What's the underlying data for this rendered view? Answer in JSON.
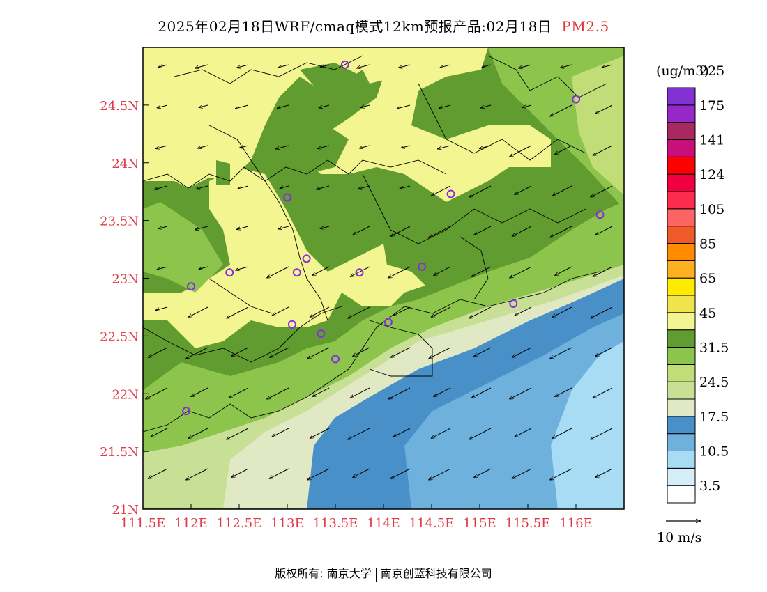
{
  "title": {
    "main": "2025年02月18日WRF/cmaq模式12km预报产品:02月18日",
    "pollutant": "PM2.5"
  },
  "map": {
    "lon_range": [
      111.5,
      116.5
    ],
    "lat_range": [
      21.0,
      25.0
    ],
    "x_ticks": [
      "111.5E",
      "112E",
      "112.5E",
      "113E",
      "113.5E",
      "114E",
      "114.5E",
      "115E",
      "115.5E",
      "116E"
    ],
    "y_ticks": [
      "21N",
      "21.5N",
      "22N",
      "22.5N",
      "23N",
      "23.5N",
      "24N",
      "24.5N"
    ],
    "tick_color": "#e03a4a",
    "station_markers": [
      {
        "lon": 113.6,
        "lat": 24.85
      },
      {
        "lon": 116.0,
        "lat": 24.55
      },
      {
        "lon": 113.0,
        "lat": 23.7
      },
      {
        "lon": 114.7,
        "lat": 23.73
      },
      {
        "lon": 116.25,
        "lat": 23.55
      },
      {
        "lon": 112.4,
        "lat": 23.05
      },
      {
        "lon": 113.1,
        "lat": 23.05
      },
      {
        "lon": 113.2,
        "lat": 23.17
      },
      {
        "lon": 113.75,
        "lat": 23.05
      },
      {
        "lon": 114.4,
        "lat": 23.1
      },
      {
        "lon": 112.0,
        "lat": 22.93
      },
      {
        "lon": 113.05,
        "lat": 22.6
      },
      {
        "lon": 113.35,
        "lat": 22.52
      },
      {
        "lon": 114.05,
        "lat": 22.62
      },
      {
        "lon": 115.35,
        "lat": 22.78
      },
      {
        "lon": 113.5,
        "lat": 22.3
      },
      {
        "lon": 111.95,
        "lat": 21.85
      }
    ]
  },
  "colorbar": {
    "unit": "(ug/m3)",
    "colors": [
      "#ffffff",
      "#d6eef8",
      "#a8dcf4",
      "#6fb1dd",
      "#4a90c8",
      "#e1e9c4",
      "#c8df96",
      "#c0dd78",
      "#8dc44c",
      "#609c30",
      "#f3f591",
      "#f0e34c",
      "#ffeb00",
      "#ffb020",
      "#ff8c00",
      "#f05a28",
      "#ff6464",
      "#fb2c4e",
      "#f00040",
      "#ff0000",
      "#c8107a",
      "#aa2860",
      "#9628c8",
      "#8232d2"
    ],
    "labels": [
      "3.5",
      "10.5",
      "17.5",
      "24.5",
      "31.5",
      "45",
      "65",
      "85",
      "105",
      "124",
      "141",
      "175",
      "225"
    ]
  },
  "wind_legend": {
    "label": "10 m/s"
  },
  "footer": {
    "copyright": "版权所有: 南京大学",
    "company": "南京创蓝科技有限公司"
  }
}
